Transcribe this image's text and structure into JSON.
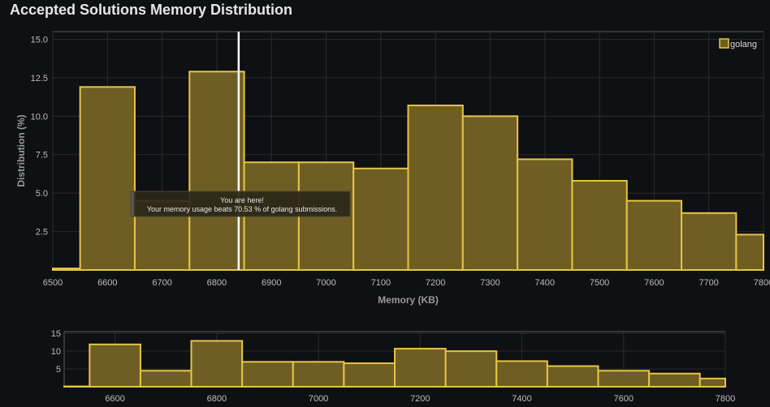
{
  "title": "Accepted Solutions Memory Distribution",
  "colors": {
    "bar_fill": "#6f5e24",
    "bar_stroke": "#e6c547",
    "grid": "#2a2b2e",
    "frame": "#5a5a5a",
    "marker": "#ffffff",
    "tooltip_bg": "#2a2619"
  },
  "chart_data": {
    "type": "bar",
    "title": "Accepted Solutions Memory Distribution",
    "xlabel": "Memory (KB)",
    "ylabel": "Distribution (%)",
    "xlim": [
      6500,
      7800
    ],
    "ylim": [
      0,
      15.5
    ],
    "xticks": [
      6500,
      6600,
      6700,
      6800,
      6900,
      7000,
      7100,
      7200,
      7300,
      7400,
      7500,
      7600,
      7700,
      7800
    ],
    "yticks": [
      "2.5",
      "5.0",
      "7.5",
      "10.0",
      "12.5",
      "15.0"
    ],
    "legend": "golang",
    "legend_position": "top-right",
    "bin_starts": [
      6500,
      6550,
      6650,
      6750,
      6850,
      6950,
      7050,
      7150,
      7250,
      7350,
      7450,
      7550,
      7650,
      7750
    ],
    "bin_ends": [
      6550,
      6650,
      6750,
      6850,
      6950,
      7050,
      7150,
      7250,
      7350,
      7450,
      7550,
      7650,
      7750,
      7800
    ],
    "values": [
      0.1,
      11.9,
      4.5,
      12.9,
      7.0,
      7.0,
      6.6,
      10.7,
      10.0,
      7.2,
      5.8,
      4.5,
      3.7,
      2.3
    ],
    "marker_x": 6840,
    "tooltip": {
      "line1": "You are here!",
      "line2": "Your memory usage beats 70.53 % of golang submissions."
    },
    "navigator": {
      "xticks": [
        6600,
        6800,
        7000,
        7200,
        7400,
        7600,
        7800
      ],
      "yticks": [
        "5",
        "10",
        "15"
      ],
      "ylim": [
        0,
        15.5
      ]
    }
  }
}
